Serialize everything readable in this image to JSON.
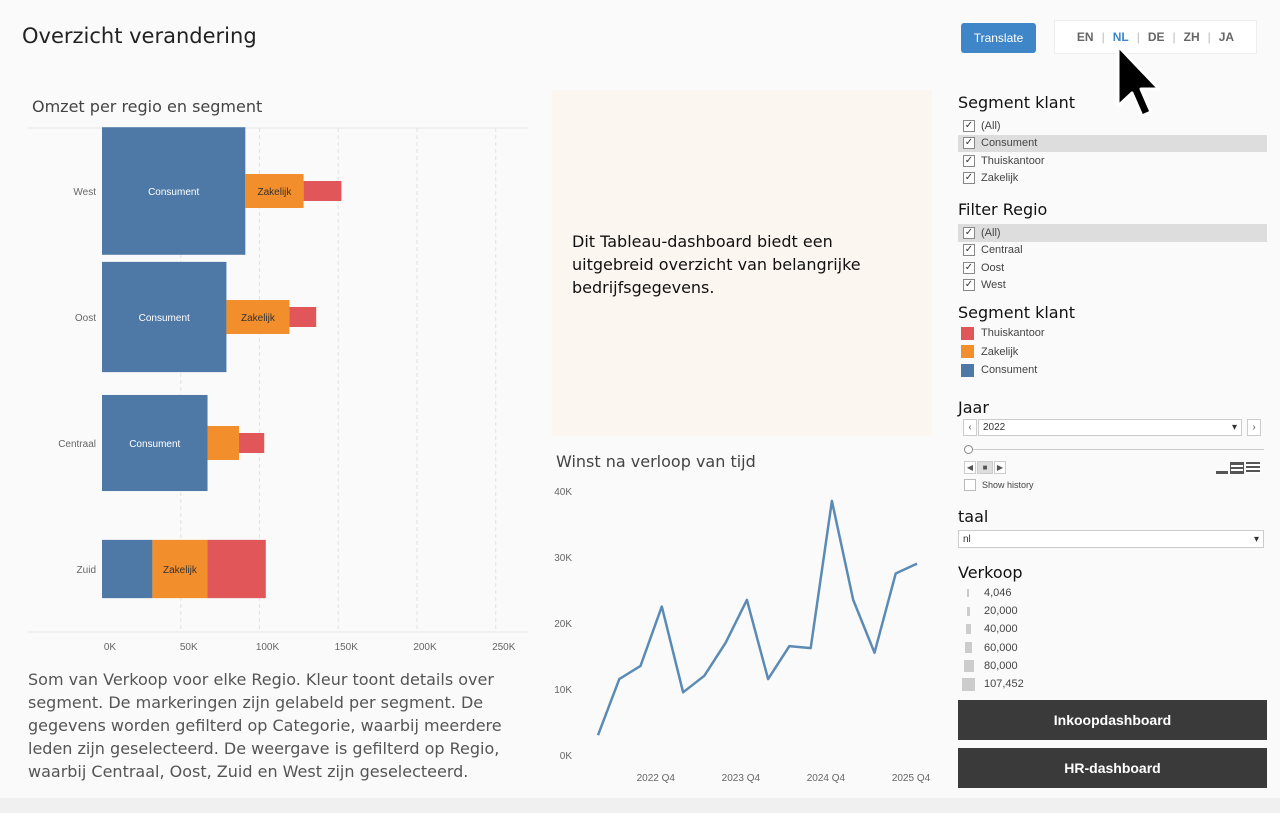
{
  "header": {
    "title": "Overzicht verandering",
    "translate_label": "Translate"
  },
  "languages": {
    "items": [
      "EN",
      "NL",
      "DE",
      "ZH",
      "JA"
    ],
    "active": "NL"
  },
  "bar_chart": {
    "title": "Omzet per regio en segment"
  },
  "summary": "Som van Verkoop voor elke Regio.  Kleur toont details over segment.  De markeringen zijn gelabeld per segment. De gegevens worden gefilterd op Categorie, waarbij meerdere leden zijn geselecteerd. De weergave is gefilterd op Regio, waarbij Centraal, Oost, Zuid en West zijn geselecteerd.",
  "description": "Dit Tableau-dashboard biedt een uitgebreid overzicht van belangrijke bedrijfsgegevens.",
  "line_chart": {
    "title": "Winst na verloop van tijd"
  },
  "filters": {
    "segment": {
      "title": "Segment klant",
      "items": [
        {
          "label": "(All)",
          "checked": "✓"
        },
        {
          "label": "Consument",
          "checked": "✓"
        },
        {
          "label": "Thuiskantoor",
          "checked": "✓"
        },
        {
          "label": "Zakelijk",
          "checked": "✓"
        }
      ]
    },
    "regio": {
      "title": "Filter Regio",
      "items": [
        {
          "label": "(All)",
          "checked": "✓"
        },
        {
          "label": "Centraal",
          "checked": "✓"
        },
        {
          "label": "Oost",
          "checked": "✓"
        },
        {
          "label": "West",
          "checked": "✓"
        }
      ]
    }
  },
  "legend": {
    "title": "Segment klant",
    "items": [
      {
        "label": "Thuiskantoor",
        "color": "#e15759"
      },
      {
        "label": "Zakelijk",
        "color": "#f28e2b"
      },
      {
        "label": "Consument",
        "color": "#4e79a7"
      }
    ]
  },
  "year": {
    "title": "Jaar",
    "value": "2022",
    "show_history": "Show history"
  },
  "taal": {
    "title": "taal",
    "value": "nl"
  },
  "verkoop": {
    "title": "Verkoop",
    "items": [
      "4,046",
      "20,000",
      "40,000",
      "60,000",
      "80,000",
      "107,452"
    ]
  },
  "buttons": {
    "inkoop": "Inkoopdashboard",
    "hr": "HR-dashboard"
  },
  "colors": {
    "consument": "#4e79a7",
    "zakelijk": "#f28e2b",
    "thuiskantoor": "#e15759",
    "line": "#5b8bb5",
    "accent": "#3f86c9"
  },
  "chart_data": [
    {
      "type": "bar",
      "title": "Omzet per regio en segment",
      "orientation": "horizontal-stacked",
      "categories": [
        "West",
        "Oost",
        "Centraal",
        "Zuid"
      ],
      "series": [
        {
          "name": "Consument",
          "values": [
            91000,
            79000,
            67000,
            32000
          ],
          "labels": [
            "Consument",
            "Consument",
            "Consument",
            ""
          ]
        },
        {
          "name": "Zakelijk",
          "values": [
            37000,
            40000,
            20000,
            35000
          ],
          "labels": [
            "Zakelijk",
            "Zakelijk",
            "",
            "Zakelijk"
          ]
        },
        {
          "name": "Thuiskantoor",
          "values": [
            24000,
            17000,
            16000,
            37000
          ],
          "labels": [
            "",
            "",
            "",
            ""
          ]
        }
      ],
      "thickness": [
        81000,
        70000,
        61000,
        37000
      ],
      "x_ticks": [
        "0K",
        "50K",
        "100K",
        "150K",
        "200K",
        "250K"
      ],
      "xlim": [
        0,
        250000
      ]
    },
    {
      "type": "line",
      "title": "Winst na verloop van tijd",
      "x": [
        "2022 Q1",
        "2022 Q2",
        "2022 Q3",
        "2022 Q4",
        "2023 Q1",
        "2023 Q2",
        "2023 Q3",
        "2023 Q4",
        "2024 Q1",
        "2024 Q2",
        "2024 Q3",
        "2024 Q4",
        "2025 Q1",
        "2025 Q2",
        "2025 Q3",
        "2025 Q4"
      ],
      "values": [
        3000,
        11500,
        13500,
        22500,
        9500,
        12000,
        17000,
        23500,
        11500,
        16500,
        16200,
        38500,
        23500,
        15500,
        27500,
        29000
      ],
      "x_tick_labels": [
        "2022 Q4",
        "2023 Q4",
        "2024 Q4",
        "2025 Q4"
      ],
      "y_ticks": [
        "0K",
        "10K",
        "20K",
        "30K",
        "40K"
      ],
      "ylim": [
        0,
        40000
      ]
    }
  ]
}
